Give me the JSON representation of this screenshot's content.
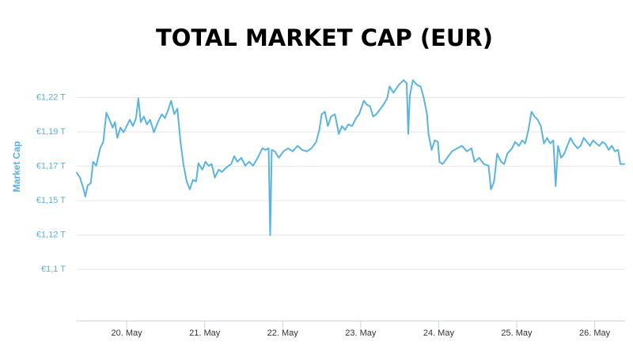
{
  "chart_data": {
    "type": "line",
    "title": "TOTAL MARKET CAP (EUR)",
    "y_label": "Market Cap",
    "color": "#5ab4e0",
    "grid": true,
    "xlim": [
      19.36,
      26.39
    ],
    "xticks": [
      {
        "value": 20,
        "label": "20. May"
      },
      {
        "value": 21,
        "label": "21. May"
      },
      {
        "value": 22,
        "label": "22. May"
      },
      {
        "value": 23,
        "label": "23. May"
      },
      {
        "value": 24,
        "label": "24. May"
      },
      {
        "value": 25,
        "label": "25. May"
      },
      {
        "value": 26,
        "label": "26. May"
      }
    ],
    "ylim": [
      1.065,
      1.241
    ],
    "yticks": [
      {
        "value": 1.1,
        "label": "€1,1 T"
      },
      {
        "value": 1.1235,
        "label": "€1,12 T"
      },
      {
        "value": 1.147,
        "label": "€1,15 T"
      },
      {
        "value": 1.1705,
        "label": "€1,17 T"
      },
      {
        "value": 1.194,
        "label": "€1,19 T"
      },
      {
        "value": 1.2175,
        "label": "€1,22 T"
      }
    ],
    "x": [
      19.36,
      19.4,
      19.44,
      19.47,
      19.5,
      19.54,
      19.57,
      19.61,
      19.66,
      19.7,
      19.74,
      19.78,
      19.82,
      19.85,
      19.88,
      19.92,
      19.96,
      20.0,
      20.04,
      20.08,
      20.12,
      20.15,
      20.18,
      20.22,
      20.26,
      20.3,
      20.35,
      20.4,
      20.45,
      20.49,
      20.53,
      20.57,
      20.61,
      20.65,
      20.69,
      20.73,
      20.77,
      20.81,
      20.85,
      20.89,
      20.92,
      20.97,
      21.01,
      21.05,
      21.09,
      21.13,
      21.18,
      21.22,
      21.28,
      21.34,
      21.38,
      21.42,
      21.47,
      21.52,
      21.57,
      21.62,
      21.68,
      21.74,
      21.78,
      21.82,
      21.84,
      21.86,
      21.9,
      21.95,
      22.01,
      22.07,
      22.13,
      22.19,
      22.25,
      22.31,
      22.37,
      22.43,
      22.47,
      22.5,
      22.54,
      22.58,
      22.62,
      22.67,
      22.72,
      22.76,
      22.8,
      22.84,
      22.89,
      22.94,
      22.98,
      23.04,
      23.08,
      23.12,
      23.16,
      23.2,
      23.24,
      23.3,
      23.34,
      23.37,
      23.42,
      23.49,
      23.55,
      23.59,
      23.61,
      23.63,
      23.67,
      23.72,
      23.77,
      23.81,
      23.85,
      23.87,
      23.91,
      23.95,
      23.99,
      24.01,
      24.05,
      24.11,
      24.17,
      24.24,
      24.3,
      24.36,
      24.42,
      24.46,
      24.52,
      24.58,
      24.64,
      24.67,
      24.71,
      24.75,
      24.8,
      24.84,
      24.88,
      24.94,
      24.98,
      25.03,
      25.07,
      25.11,
      25.15,
      25.19,
      25.23,
      25.27,
      25.31,
      25.35,
      25.39,
      25.43,
      25.47,
      25.5,
      25.53,
      25.57,
      25.61,
      25.65,
      25.69,
      25.73,
      25.78,
      25.82,
      25.86,
      25.9,
      25.94,
      25.98,
      26.02,
      26.06,
      26.1,
      26.14,
      26.18,
      26.22,
      26.26,
      26.3,
      26.33,
      26.38
    ],
    "values": [
      1.1661,
      1.1628,
      1.1563,
      1.1498,
      1.1574,
      1.159,
      1.1736,
      1.1709,
      1.1828,
      1.1872,
      1.2072,
      1.2023,
      1.1969,
      1.2007,
      1.1899,
      1.1969,
      1.1937,
      1.198,
      1.2023,
      1.198,
      1.2034,
      1.217,
      1.2007,
      1.2045,
      1.1991,
      1.2023,
      1.1937,
      1.2007,
      1.2061,
      1.2034,
      1.2088,
      1.2153,
      1.2061,
      1.2099,
      1.1872,
      1.1709,
      1.1601,
      1.1547,
      1.1612,
      1.1601,
      1.1726,
      1.1682,
      1.1736,
      1.1709,
      1.172,
      1.1628,
      1.1682,
      1.1666,
      1.1698,
      1.172,
      1.1774,
      1.1736,
      1.1763,
      1.1709,
      1.1736,
      1.1709,
      1.1763,
      1.1828,
      1.1817,
      1.1828,
      1.1233,
      1.1817,
      1.1807,
      1.1763,
      1.1807,
      1.1828,
      1.1807,
      1.1845,
      1.1817,
      1.1807,
      1.1828,
      1.1872,
      1.1953,
      1.2061,
      1.2078,
      1.198,
      1.2045,
      1.2061,
      1.1926,
      1.198,
      1.1953,
      1.1991,
      1.198,
      1.2034,
      1.2061,
      1.2153,
      1.2126,
      1.2115,
      1.2045,
      1.2061,
      1.2088,
      1.2132,
      1.217,
      1.2251,
      1.2208,
      1.2262,
      1.2294,
      1.2273,
      1.1926,
      1.2186,
      1.2294,
      1.2262,
      1.2251,
      1.217,
      1.2061,
      1.1926,
      1.1817,
      1.1882,
      1.1872,
      1.1736,
      1.172,
      1.1763,
      1.1807,
      1.1828,
      1.1845,
      1.1807,
      1.1828,
      1.1736,
      1.1763,
      1.172,
      1.1709,
      1.1547,
      1.1601,
      1.1791,
      1.1736,
      1.172,
      1.1791,
      1.1828,
      1.1872,
      1.1845,
      1.1882,
      1.1861,
      1.1953,
      1.2078,
      1.2045,
      1.2023,
      1.198,
      1.1861,
      1.1899,
      1.1861,
      1.1882,
      1.1569,
      1.1845,
      1.1763,
      1.1791,
      1.1845,
      1.1899,
      1.1861,
      1.1828,
      1.1845,
      1.1899,
      1.1872,
      1.1845,
      1.1882,
      1.1861,
      1.1845,
      1.1872,
      1.1856,
      1.1817,
      1.1845,
      1.1807,
      1.1817,
      1.172,
      1.172
    ]
  }
}
